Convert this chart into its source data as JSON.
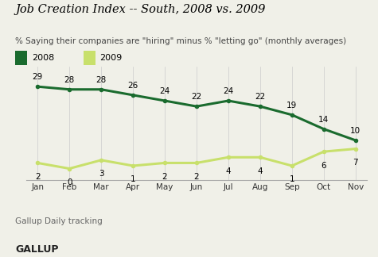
{
  "title": "Job Creation Index -- South, 2008 vs. 2009",
  "subtitle": "% Saying their companies are \"hiring\" minus % \"letting go\" (monthly averages)",
  "months": [
    "Jan",
    "Feb",
    "Mar",
    "Apr",
    "May",
    "Jun",
    "Jul",
    "Aug",
    "Sep",
    "Oct",
    "Nov"
  ],
  "values_2008": [
    29,
    28,
    28,
    26,
    24,
    22,
    24,
    22,
    19,
    14,
    10
  ],
  "values_2009": [
    2,
    0,
    3,
    1,
    2,
    2,
    4,
    4,
    1,
    6,
    7
  ],
  "color_2008": "#1a6b2e",
  "color_2009": "#c8e06b",
  "line_width": 2.2,
  "marker": "o",
  "marker_size": 4,
  "ylim": [
    -4,
    36
  ],
  "footer_text": "Gallup Daily tracking",
  "brand_text": "GALLUP",
  "bg_color": "#f0f0e8",
  "legend_2008": "2008",
  "legend_2009": "2009",
  "title_fontsize": 10.5,
  "subtitle_fontsize": 7.5,
  "tick_fontsize": 7.5,
  "label_fontsize": 7.5,
  "legend_fontsize": 8,
  "footer_fontsize": 7.5,
  "brand_fontsize": 9
}
